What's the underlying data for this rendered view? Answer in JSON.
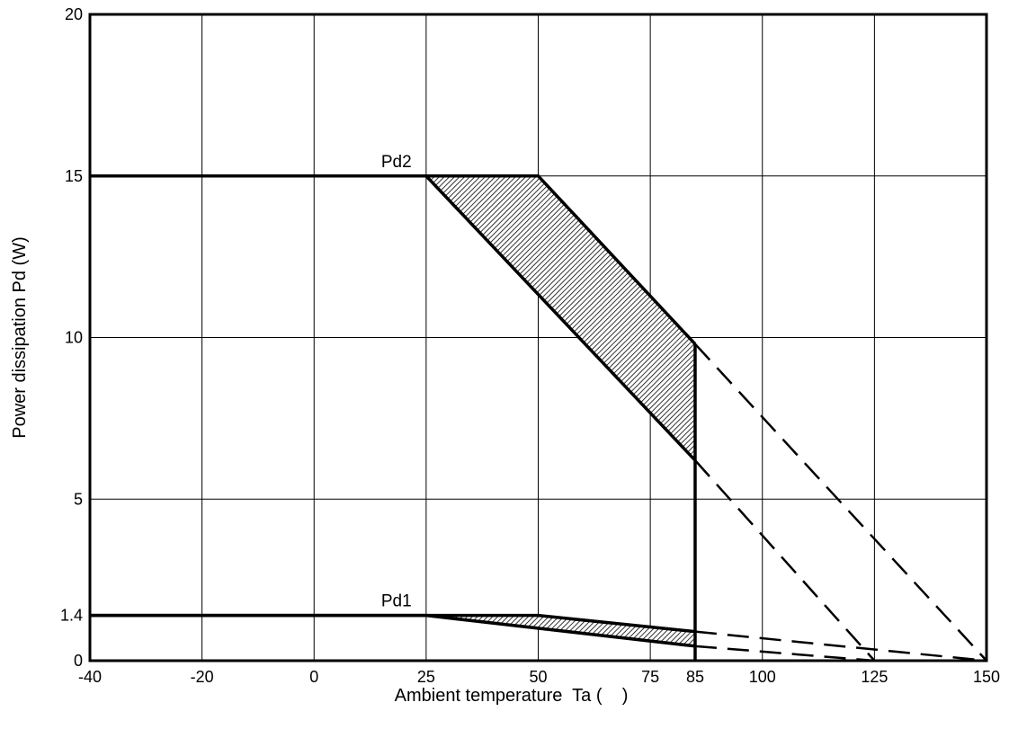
{
  "chart_data": {
    "type": "line",
    "xlabel": "Ambient temperature  Ta (    )",
    "ylabel": "Power dissipation Pd (W)",
    "x_ticks": [
      -40,
      -20,
      0,
      25,
      50,
      75,
      85,
      100,
      125,
      150
    ],
    "y_ticks": [
      0,
      1.4,
      5,
      10,
      15,
      20
    ],
    "x_tick_labels": [
      "-40",
      "-20",
      "0",
      "25",
      "50",
      "75",
      "85",
      "100",
      "125",
      "150"
    ],
    "y_tick_labels": [
      "0",
      "1.4",
      "5",
      "10",
      "15",
      "20"
    ],
    "xlim": [
      -40,
      150
    ],
    "ylim": [
      0,
      20
    ],
    "grid": true,
    "series": [
      {
        "name": "Pd2",
        "upper": {
          "x": [
            -40,
            50,
            85
          ],
          "y": [
            15,
            15,
            9.8
          ]
        },
        "lower": {
          "x": [
            -40,
            25,
            85
          ],
          "y": [
            15,
            15,
            6.2
          ]
        },
        "upper_dashed_extension": {
          "x": [
            85,
            150
          ],
          "y": [
            9.8,
            0
          ]
        },
        "lower_dashed_extension": {
          "x": [
            85,
            125
          ],
          "y": [
            6.2,
            0
          ]
        },
        "shaded_region": true
      },
      {
        "name": "Pd1",
        "upper": {
          "x": [
            -40,
            50,
            85
          ],
          "y": [
            1.4,
            1.4,
            0.9
          ]
        },
        "lower": {
          "x": [
            -40,
            25,
            85
          ],
          "y": [
            1.4,
            1.4,
            0.45
          ]
        },
        "upper_dashed_extension": {
          "x": [
            85,
            150
          ],
          "y": [
            0.9,
            0
          ]
        },
        "lower_dashed_extension": {
          "x": [
            85,
            125
          ],
          "y": [
            0.45,
            0
          ]
        },
        "shaded_region": true
      }
    ],
    "vertical_marker": {
      "x": 85,
      "y_from": 0,
      "y_to": 9.8
    }
  }
}
